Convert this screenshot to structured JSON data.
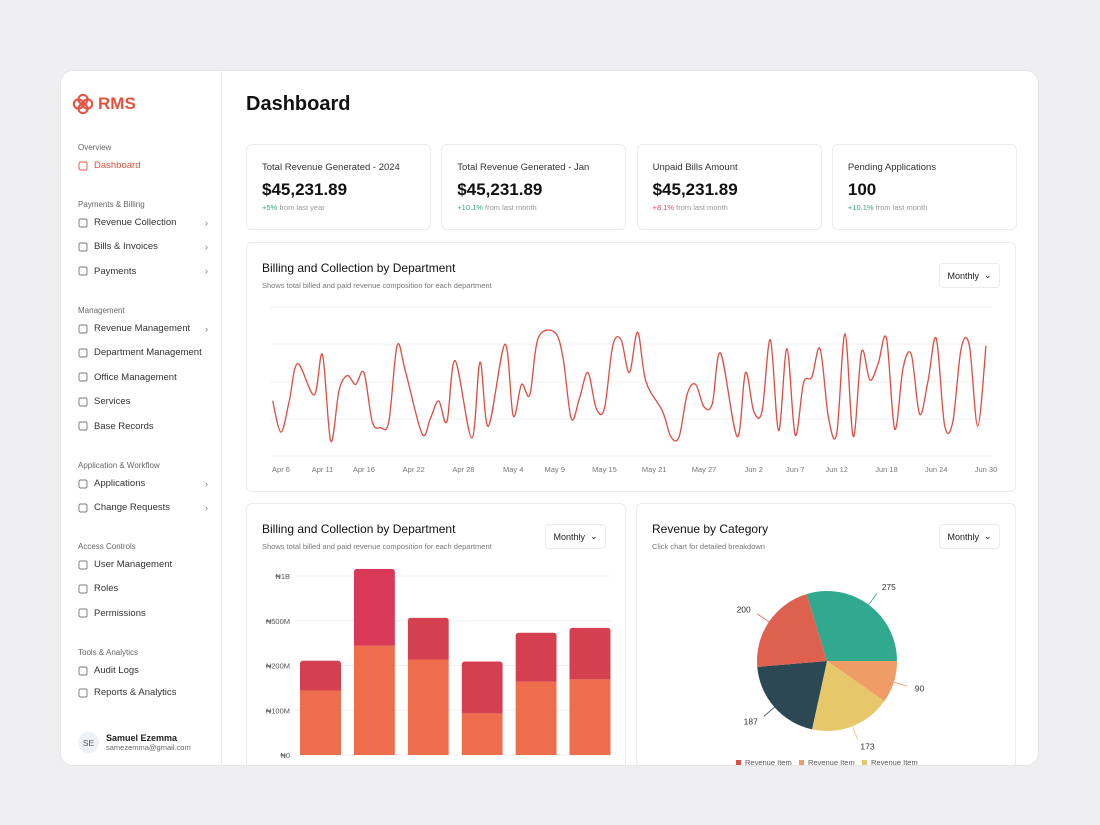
{
  "brand": {
    "name": "RMS",
    "color": "#e5533e"
  },
  "sidebar": {
    "sections": [
      {
        "title": "Overview",
        "items": [
          {
            "label": "Dashboard",
            "icon": "grid-icon",
            "active": true,
            "chevron": false
          }
        ]
      },
      {
        "title": "Payments & Billing",
        "items": [
          {
            "label": "Revenue Collection",
            "icon": "coins-icon",
            "chevron": true
          },
          {
            "label": "Bills & Invoices",
            "icon": "invoice-icon",
            "chevron": true
          },
          {
            "label": "Payments",
            "icon": "banknote-icon",
            "chevron": true
          }
        ]
      },
      {
        "title": "Management",
        "items": [
          {
            "label": "Revenue Management",
            "icon": "document-icon",
            "chevron": true
          },
          {
            "label": "Department Management",
            "icon": "building-icon",
            "chevron": false
          },
          {
            "label": "Office Management",
            "icon": "office-icon",
            "chevron": false
          },
          {
            "label": "Services",
            "icon": "services-icon",
            "chevron": false
          },
          {
            "label": "Base Records",
            "icon": "folder-icon",
            "chevron": false
          }
        ]
      },
      {
        "title": "Application & Workflow",
        "items": [
          {
            "label": "Applications",
            "icon": "edit-icon",
            "chevron": true
          },
          {
            "label": "Change Requests",
            "icon": "git-pull-icon",
            "chevron": true
          }
        ]
      },
      {
        "title": "Access Controls",
        "items": [
          {
            "label": "User Management",
            "icon": "user-gear-icon",
            "chevron": false
          },
          {
            "label": "Roles",
            "icon": "shield-icon",
            "chevron": false
          },
          {
            "label": "Permissions",
            "icon": "key-icon",
            "chevron": false
          }
        ]
      },
      {
        "title": "Tools & Analytics",
        "items": [
          {
            "label": "Audit Logs",
            "icon": "list-icon",
            "chevron": false
          },
          {
            "label": "Reports & Analytics",
            "icon": "bar-chart-icon",
            "chevron": false
          }
        ]
      }
    ],
    "user": {
      "initials": "SE",
      "name": "Samuel Ezemma",
      "email": "samezemma@gmail.com"
    }
  },
  "page": {
    "title": "Dashboard"
  },
  "stats": [
    {
      "label": "Total Revenue Generated - 2024",
      "value": "$45,231.89",
      "change": "+5%",
      "note": "from last year",
      "trend": "up"
    },
    {
      "label": "Total Revenue Generated - Jan",
      "value": "$45,231.89",
      "change": "+10.1%",
      "note": "from last month",
      "trend": "up"
    },
    {
      "label": "Unpaid Bills Amount",
      "value": "$45,231.89",
      "change": "+8.1%",
      "note": "from last month",
      "trend": "down"
    },
    {
      "label": "Pending Applications",
      "value": "100",
      "change": "+10.1%",
      "note": "from last month",
      "trend": "up"
    }
  ],
  "line_card": {
    "title": "Billing and Collection by Department",
    "subtitle": "Shows total billed and paid revenue composition for each department",
    "period": "Monthly"
  },
  "bar_card": {
    "title": "Billing and Collection by Department",
    "subtitle": "Shows total billed and paid revenue composition for each department",
    "period": "Monthly"
  },
  "pie_card": {
    "title": "Revenue by Category",
    "subtitle": "Click chart for detailed breakdown",
    "period": "Monthly"
  },
  "chart_data": [
    {
      "type": "line",
      "color": "#e4483f",
      "grid": true,
      "x_ticks": [
        "Apr 6",
        "Apr 11",
        "Apr 16",
        "Apr 22",
        "Apr 28",
        "May 4",
        "May 9",
        "May 15",
        "May 21",
        "May 27",
        "Jun 2",
        "Jun 7",
        "Jun 12",
        "Jun 18",
        "Jun 24",
        "Jun 30"
      ],
      "points": [
        [
          "Apr 5",
          37
        ],
        [
          "Apr 6",
          16
        ],
        [
          "Apr 7",
          37
        ],
        [
          "Apr 8",
          62
        ],
        [
          "Apr 10",
          41
        ],
        [
          "Apr 11",
          68
        ],
        [
          "Apr 12",
          10
        ],
        [
          "Apr 13",
          44
        ],
        [
          "Apr 14",
          54
        ],
        [
          "Apr 15",
          48
        ],
        [
          "Apr 16",
          56
        ],
        [
          "Apr 17",
          23
        ],
        [
          "Apr 18",
          19
        ],
        [
          "Apr 19",
          23
        ],
        [
          "Apr 20",
          74
        ],
        [
          "Apr 21",
          57
        ],
        [
          "Apr 23",
          15
        ],
        [
          "Apr 24",
          25
        ],
        [
          "Apr 25",
          37
        ],
        [
          "Apr 26",
          23
        ],
        [
          "Apr 27",
          64
        ],
        [
          "Apr 29",
          12
        ],
        [
          "Apr 30",
          63
        ],
        [
          "May 1",
          20
        ],
        [
          "May 3",
          75
        ],
        [
          "May 4",
          27
        ],
        [
          "May 5",
          48
        ],
        [
          "May 6",
          41
        ],
        [
          "May 7",
          79
        ],
        [
          "May 9",
          83
        ],
        [
          "May 10",
          66
        ],
        [
          "May 11",
          25
        ],
        [
          "May 12",
          39
        ],
        [
          "May 13",
          56
        ],
        [
          "May 14",
          32
        ],
        [
          "May 15",
          32
        ],
        [
          "May 16",
          74
        ],
        [
          "May 17",
          78
        ],
        [
          "May 18",
          56
        ],
        [
          "May 19",
          83
        ],
        [
          "May 20",
          50
        ],
        [
          "May 22",
          30
        ],
        [
          "May 23",
          13
        ],
        [
          "May 24",
          13
        ],
        [
          "May 25",
          42
        ],
        [
          "May 26",
          48
        ],
        [
          "May 27",
          33
        ],
        [
          "May 28",
          35
        ],
        [
          "May 29",
          69
        ],
        [
          "May 31",
          13
        ],
        [
          "Jun 1",
          56
        ],
        [
          "Jun 2",
          30
        ],
        [
          "Jun 3",
          30
        ],
        [
          "Jun 4",
          78
        ],
        [
          "Jun 5",
          17
        ],
        [
          "Jun 6",
          72
        ],
        [
          "Jun 7",
          14
        ],
        [
          "Jun 8",
          49
        ],
        [
          "Jun 9",
          53
        ],
        [
          "Jun 10",
          72
        ],
        [
          "Jun 11",
          26
        ],
        [
          "Jun 12",
          15
        ],
        [
          "Jun 13",
          82
        ],
        [
          "Jun 14",
          13
        ],
        [
          "Jun 15",
          70
        ],
        [
          "Jun 16",
          51
        ],
        [
          "Jun 17",
          62
        ],
        [
          "Jun 18",
          79
        ],
        [
          "Jun 19",
          18
        ],
        [
          "Jun 20",
          59
        ],
        [
          "Jun 21",
          68
        ],
        [
          "Jun 22",
          28
        ],
        [
          "Jun 23",
          50
        ],
        [
          "Jun 24",
          79
        ],
        [
          "Jun 25",
          21
        ],
        [
          "Jun 26",
          23
        ],
        [
          "Jun 27",
          72
        ],
        [
          "Jun 28",
          74
        ],
        [
          "Jun 29",
          20
        ],
        [
          "Jun 30",
          74
        ]
      ],
      "ylim": [
        0,
        100
      ]
    },
    {
      "type": "bar",
      "stacked": true,
      "grid": true,
      "y_ticks": [
        {
          "label": "₦0",
          "value": 0
        },
        {
          "label": "₦100M",
          "value": 100
        },
        {
          "label": "₦200M",
          "value": 200
        },
        {
          "label": "₦500M",
          "value": 500
        },
        {
          "label": "₦1B",
          "value": 1000
        }
      ],
      "unit": "M",
      "series": [
        {
          "color": "#ee6d4c",
          "values": [
            144,
            333,
            240,
            93,
            164,
            169
          ]
        },
        {
          "color": "#d4404f",
          "values": [
            89,
            747,
            294,
            134,
            256,
            284
          ]
        }
      ]
    },
    {
      "type": "pie",
      "slices": [
        {
          "value": 275,
          "color": "#30a98f"
        },
        {
          "value": 90,
          "color": "#ef9c66"
        },
        {
          "value": 173,
          "color": "#e6c76a"
        },
        {
          "value": 187,
          "color": "#2b4854"
        },
        {
          "value": 200,
          "color": "#de6150"
        }
      ],
      "legend": [
        {
          "label": "Revenue Item",
          "color": "#de4f45"
        },
        {
          "label": "Revenue Item",
          "color": "#ef9c66"
        },
        {
          "label": "Revenue Item",
          "color": "#e6c76a"
        }
      ],
      "legend_position": "bottom"
    }
  ]
}
